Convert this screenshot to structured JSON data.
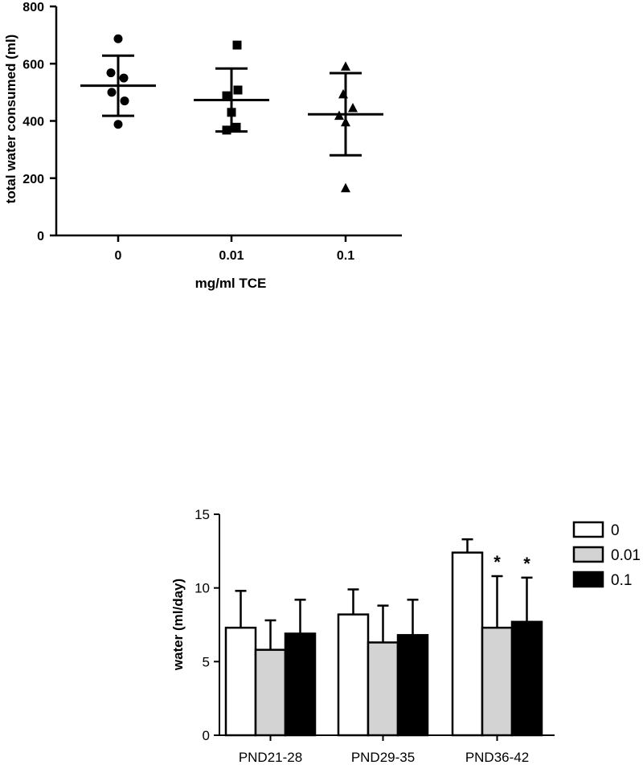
{
  "chart_data": [
    {
      "type": "scatter",
      "ylabel": "total water consumed (ml)",
      "xlabel": "mg/ml TCE",
      "categories": [
        "0",
        "0.01",
        "0.1"
      ],
      "yticks": [
        "0",
        "200",
        "400",
        "600",
        "800"
      ],
      "ylim": [
        0,
        800
      ],
      "grid": false,
      "groups": [
        {
          "category": "0",
          "marker": "circle",
          "points": [
            687,
            568,
            550,
            500,
            470,
            388
          ],
          "mean": 523,
          "error_upper": 628,
          "error_lower": 418
        },
        {
          "category": "0.01",
          "marker": "square",
          "points": [
            665,
            508,
            488,
            430,
            378,
            368
          ],
          "mean": 473,
          "error_upper": 583,
          "error_lower": 363
        },
        {
          "category": "0.1",
          "marker": "triangle",
          "points": [
            590,
            493,
            445,
            418,
            395,
            165
          ],
          "mean": 423,
          "error_upper": 567,
          "error_lower": 280
        }
      ]
    },
    {
      "type": "bar",
      "ylabel": "water  (ml/day)",
      "categories": [
        "PND21-28",
        "PND29-35",
        "PND36-42"
      ],
      "yticks": [
        "0",
        "5",
        "10",
        "15"
      ],
      "ylim": [
        0,
        15
      ],
      "grid": false,
      "legend_position": "right",
      "series": [
        {
          "name": "0",
          "color": "#ffffff",
          "values": [
            7.3,
            8.2,
            12.4
          ],
          "errors": [
            2.5,
            1.7,
            0.9
          ],
          "annotations": [
            "",
            "",
            ""
          ]
        },
        {
          "name": "0.01",
          "color": "#d3d3d3",
          "values": [
            5.8,
            6.3,
            7.3
          ],
          "errors": [
            2.0,
            2.5,
            3.5
          ],
          "annotations": [
            "",
            "",
            "*"
          ]
        },
        {
          "name": "0.1",
          "color": "#000000",
          "values": [
            6.9,
            6.8,
            7.7
          ],
          "errors": [
            2.3,
            2.4,
            3.0
          ],
          "annotations": [
            "",
            "",
            "*"
          ]
        }
      ]
    }
  ]
}
